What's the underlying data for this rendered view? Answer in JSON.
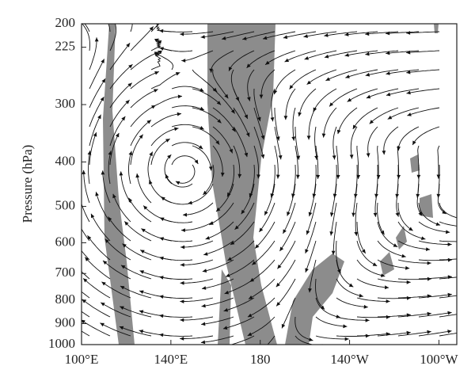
{
  "chart_data": {
    "type": "streamline",
    "y_label": "Pressure (hPa)",
    "y_log": true,
    "y_inverted": true,
    "ylim": [
      200,
      1000
    ],
    "yticks": [
      200,
      225,
      300,
      400,
      500,
      600,
      700,
      800,
      900,
      1000
    ],
    "xlim": [
      100,
      268
    ],
    "xticks": [
      {
        "value": 100,
        "label": "100°E"
      },
      {
        "value": 140,
        "label": "140°E"
      },
      180,
      {
        "value": 220,
        "label": "140°W"
      },
      {
        "value": 260,
        "label": "100°W"
      }
    ]
  }
}
